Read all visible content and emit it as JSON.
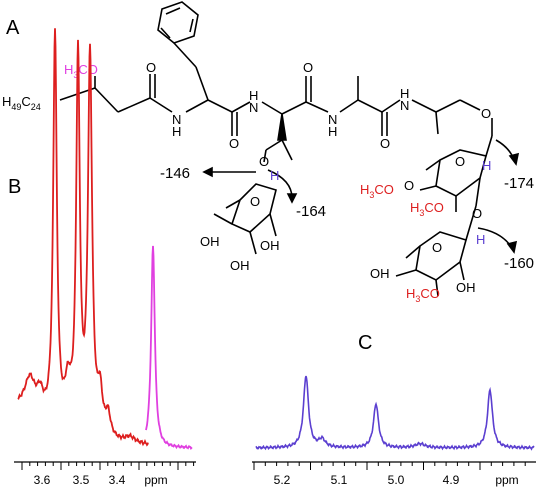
{
  "panels": {
    "a": "A",
    "b": "B",
    "c": "C"
  },
  "structure": {
    "chain": {
      "prefix": "H",
      "h_count": "49",
      "c": "C",
      "c_count": "24"
    },
    "methoxy_top": {
      "h": "H",
      "h_count": "3",
      "co": "CO"
    },
    "atoms": {
      "o": "O",
      "h": "H",
      "n": "N",
      "oh": "OH"
    },
    "methoxy_red": {
      "h": "H",
      "h_count": "3",
      "co": "CO"
    },
    "shifts": [
      "-146",
      "-164",
      "-174",
      "-160"
    ]
  },
  "spectrum_b": {
    "ticks": [
      "3.6",
      "3.5",
      "3.4"
    ],
    "unit": "ppm"
  },
  "spectrum_c": {
    "ticks": [
      "5.2",
      "5.1",
      "5.0",
      "4.9"
    ],
    "unit": "ppm"
  },
  "colors": {
    "red": "#dd1f1f",
    "magenta": "#e040e0",
    "blue": "#5b3fd0",
    "black": "#000000"
  }
}
